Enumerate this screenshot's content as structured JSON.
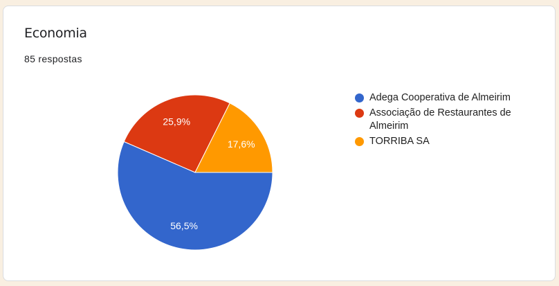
{
  "header": {
    "title": "Economia",
    "responses": "85 respostas"
  },
  "chart_data": {
    "type": "pie",
    "labels": [
      "Adega Cooperativa de Almeirim",
      "Associação de Restaurantes de Almeirim",
      "TORRIBA SA"
    ],
    "values": [
      56.5,
      25.9,
      17.6
    ],
    "data_labels": [
      "56,5%",
      "25,9%",
      "17,6%"
    ],
    "colors": [
      "#3366cc",
      "#dc3912",
      "#ff9900"
    ],
    "legend_position": "right"
  }
}
